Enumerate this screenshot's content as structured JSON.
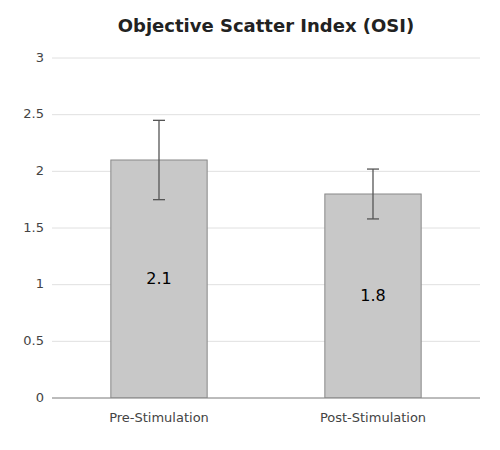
{
  "chart_data": {
    "type": "bar",
    "title": "Objective Scatter Index (OSI)",
    "categories": [
      "Pre-Stimulation",
      "Post-Stimulation"
    ],
    "values": [
      2.1,
      1.8
    ],
    "errors": [
      0.35,
      0.22
    ],
    "color": "#c8c8c8",
    "ylim": [
      0,
      3
    ],
    "yticks": [
      0,
      0.5,
      1,
      1.5,
      2,
      2.5,
      3
    ],
    "grid": true,
    "data_labels": true
  }
}
